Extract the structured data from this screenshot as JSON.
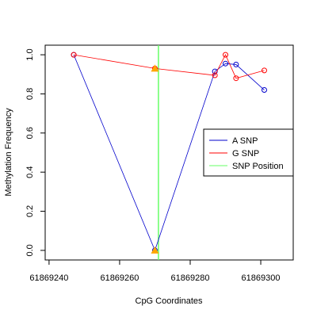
{
  "chart_data": {
    "type": "line",
    "x_label": "CpG Coordinates",
    "y_label": "Methylation Frequency",
    "x": [
      61869247,
      61869270,
      61869287,
      61869290,
      61869293,
      61869301
    ],
    "series": [
      {
        "name": "A SNP",
        "color": "#0000cc",
        "values": [
          1.0,
          0.0,
          0.915,
          0.955,
          0.95,
          0.82
        ]
      },
      {
        "name": "G SNP",
        "color": "#ff0000",
        "values": [
          1.0,
          0.93,
          0.895,
          1.0,
          0.88,
          0.92
        ]
      }
    ],
    "snp_position": {
      "name": "SNP Position",
      "color": "#66ff66",
      "x": 61869271
    },
    "snp_markers": {
      "color": "#ffa500",
      "x": 61869270,
      "values": [
        0.93,
        0.0
      ]
    },
    "xlim": [
      61869238.9,
      61869309.2
    ],
    "ylim": [
      -0.049,
      1.049
    ],
    "xticks": [
      61869240,
      61869260,
      61869280,
      61869300
    ],
    "yticks": [
      {
        "value": 0,
        "label": "0.0"
      },
      {
        "value": 0.2,
        "label": "0.2"
      },
      {
        "value": 0.4,
        "label": "0.4"
      },
      {
        "value": 0.6,
        "label": "0.6"
      },
      {
        "value": 0.8,
        "label": "0.8"
      },
      {
        "value": 1,
        "label": "1.0"
      }
    ]
  }
}
